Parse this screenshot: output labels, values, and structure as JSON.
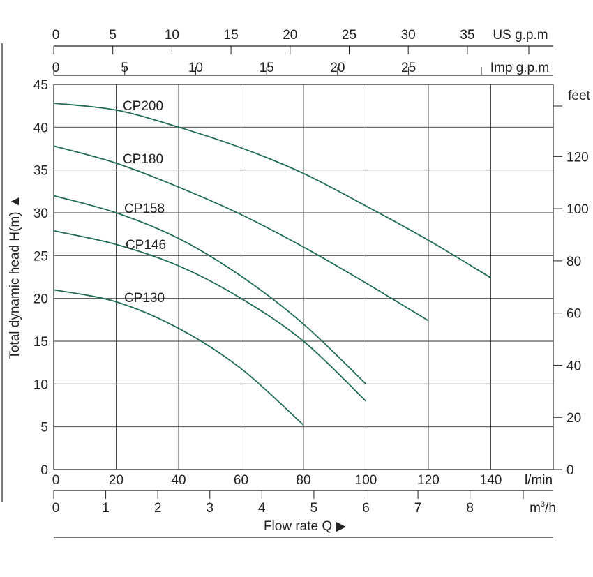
{
  "chart_data": {
    "type": "line",
    "title": "",
    "xlabel": "Flow  rate Q ▶",
    "ylabel": "Total dynamic head H(m) ▲",
    "xlim": [
      0,
      160
    ],
    "ylim": [
      0,
      45
    ],
    "grid": true,
    "x_unit": "l/min",
    "y_unit": "m",
    "x_ticks": [
      0,
      20,
      40,
      60,
      80,
      100,
      120,
      140
    ],
    "y_ticks": [
      0,
      5,
      10,
      15,
      20,
      25,
      30,
      35,
      40,
      45
    ],
    "secondary_axes": {
      "us_gpm": {
        "label": "US g.p.m",
        "ticks": [
          0,
          5,
          10,
          15,
          20,
          25,
          30,
          35
        ]
      },
      "imp_gpm": {
        "label": "Imp g.p.m",
        "ticks": [
          0,
          5,
          10,
          15,
          20,
          25
        ]
      },
      "m3h": {
        "label_prefix": "m",
        "label_sup": "3",
        "label_suffix": "/h",
        "ticks": [
          0,
          1,
          2,
          3,
          4,
          5,
          6,
          7,
          8
        ]
      },
      "feet": {
        "label": "feet",
        "ticks": [
          0,
          20,
          40,
          60,
          80,
          100,
          120
        ]
      }
    },
    "series": [
      {
        "name": "CP200",
        "color": "#1f6b55",
        "x": [
          0,
          20,
          40,
          60,
          80,
          100,
          120,
          140
        ],
        "y": [
          42.8,
          42.0,
          40.0,
          37.6,
          34.6,
          30.8,
          26.8,
          22.4
        ]
      },
      {
        "name": "CP180",
        "color": "#1f6b55",
        "x": [
          0,
          20,
          40,
          60,
          80,
          100,
          120
        ],
        "y": [
          37.8,
          35.8,
          33.0,
          29.8,
          26.0,
          21.8,
          17.4
        ]
      },
      {
        "name": "CP158",
        "color": "#1f6b55",
        "x": [
          0,
          20,
          40,
          60,
          80,
          100
        ],
        "y": [
          32.0,
          30.0,
          27.0,
          22.6,
          17.0,
          10.0
        ]
      },
      {
        "name": "CP146",
        "color": "#1f6b55",
        "x": [
          0,
          20,
          40,
          60,
          80,
          100
        ],
        "y": [
          27.9,
          26.3,
          23.8,
          20.0,
          15.0,
          8.0
        ]
      },
      {
        "name": "CP130",
        "color": "#1f6b55",
        "x": [
          0,
          20,
          40,
          60,
          80
        ],
        "y": [
          21.0,
          19.6,
          16.5,
          11.8,
          5.2
        ]
      }
    ]
  }
}
